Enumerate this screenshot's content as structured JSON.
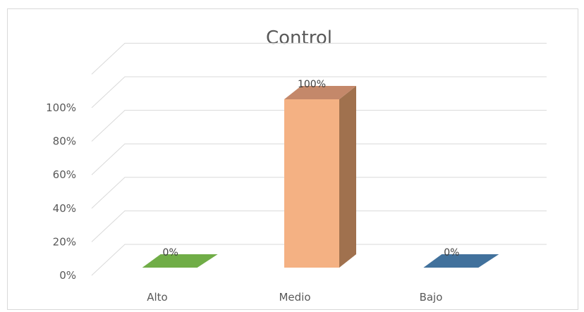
{
  "chart_data": {
    "type": "bar",
    "title": "Control",
    "categories": [
      "Alto",
      "Medio",
      "Bajo"
    ],
    "values": [
      0,
      100,
      0
    ],
    "data_labels": [
      "0%",
      "100%",
      "0%"
    ],
    "ylim": [
      0,
      100
    ],
    "yticks": [
      "0%",
      "20%",
      "40%",
      "60%",
      "80%",
      "100%"
    ],
    "grid": true,
    "legend": "none",
    "colors": {
      "Alto": {
        "front": "#70ad47",
        "side": "#4f7f31"
      },
      "Medio": {
        "front": "#f4b183",
        "side": "#a0714e",
        "top": "#c4886a"
      },
      "Bajo": {
        "front": "#41719c",
        "side": "#2e5478"
      },
      "grid": "#d9d9d9",
      "text": "#595959"
    }
  }
}
